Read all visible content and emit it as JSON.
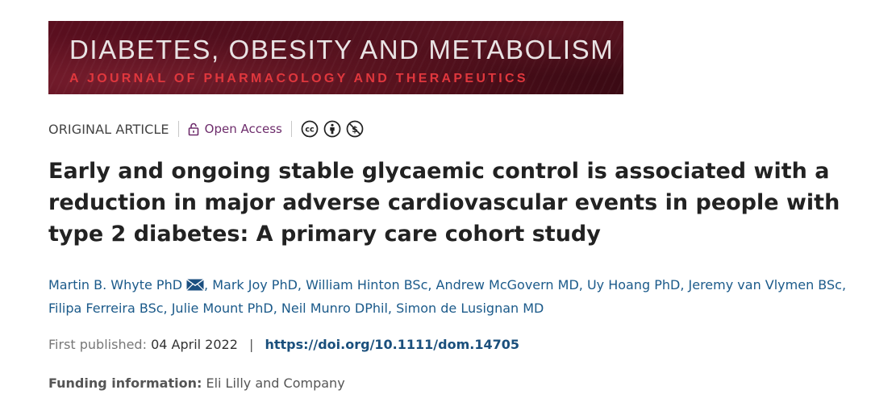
{
  "journal": {
    "title": "DIABETES, OBESITY AND METABOLISM",
    "subtitle": "A JOURNAL OF PHARMACOLOGY AND THERAPEUTICS"
  },
  "meta": {
    "article_type": "ORIGINAL ARTICLE",
    "open_access_label": "Open Access",
    "licence_icons": [
      "cc-icon",
      "attribution-icon",
      "noncommercial-icon"
    ]
  },
  "article": {
    "title": "Early and ongoing stable glycaemic control is associated with a reduction in major adverse cardiovascular events in people with type 2 diabetes: A primary care cohort study"
  },
  "authors": [
    "Martin B. Whyte PhD",
    "Mark Joy PhD",
    "William Hinton BSc",
    "Andrew McGovern MD",
    "Uy Hoang PhD",
    "Jeremy van Vlymen BSc",
    "Filipa Ferreira BSc",
    "Julie Mount PhD",
    "Neil Munro DPhil",
    "Simon de Lusignan MD"
  ],
  "authors_separator": ", ",
  "publication": {
    "first_published_label": "First published:",
    "date": "04 April 2022",
    "separator": "|",
    "doi": "https://doi.org/10.1111/dom.14705"
  },
  "funding": {
    "label": "Funding information:",
    "value": "Eli Lilly and Company"
  },
  "colors": {
    "banner_background": "#4a0d1a",
    "banner_title": "#e9e3e4",
    "banner_subtitle": "#e0373d",
    "open_access": "#6e2d6c",
    "author_link": "#1b5a8a",
    "doi_link": "#1a4f7c"
  }
}
